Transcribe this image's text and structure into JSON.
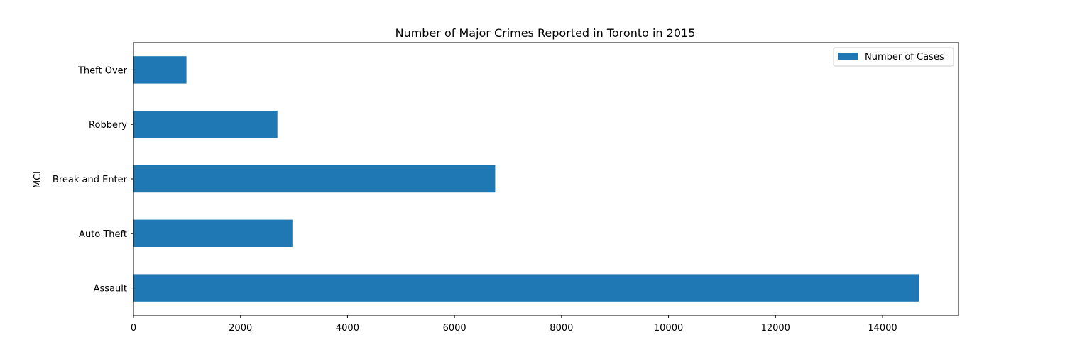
{
  "chart_data": {
    "type": "bar",
    "orientation": "horizontal",
    "title": "Number of Major Crimes Reported in Toronto in 2015",
    "xlabel": "",
    "ylabel": "MCI",
    "categories": [
      "Assault",
      "Auto Theft",
      "Break and Enter",
      "Robbery",
      "Theft Over"
    ],
    "series": [
      {
        "name": "Number of Cases",
        "values": [
          14680,
          2970,
          6760,
          2690,
          990
        ],
        "color": "#1f77b4"
      }
    ],
    "xlim": [
      0,
      15420
    ],
    "xticks": [
      0,
      2000,
      4000,
      6000,
      8000,
      10000,
      12000,
      14000
    ],
    "grid": false,
    "legend": "top-right"
  }
}
